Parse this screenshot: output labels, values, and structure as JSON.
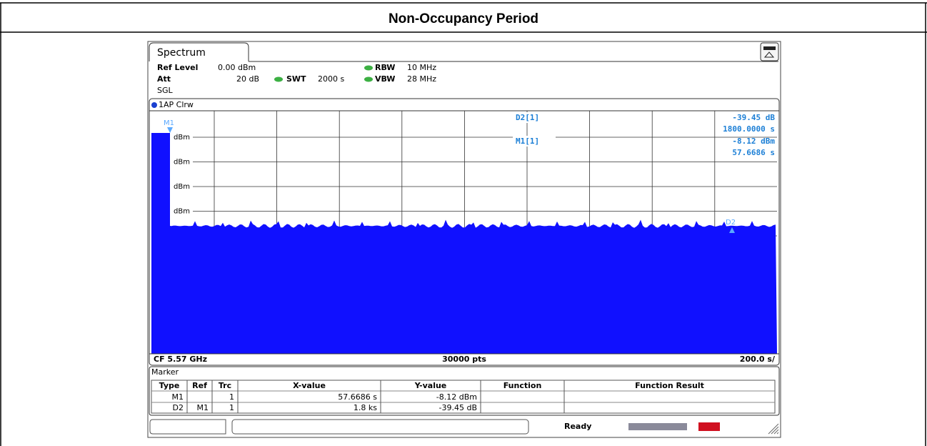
{
  "header": {
    "title": "Non-Occupancy Period"
  },
  "screen": {
    "tab": "Spectrum",
    "ref_level_label": "Ref Level",
    "ref_level": "0.00 dBm",
    "att_label": "Att",
    "att": "20 dB",
    "mode": "SGL",
    "swt_label": "SWT",
    "swt": "2000 s",
    "rbw_label": "RBW",
    "rbw": "10 MHz",
    "vbw_label": "VBW",
    "vbw": "28 MHz",
    "trace_label": "1AP Clrw",
    "y_labels": [
      "dBm",
      "dBm",
      "dBm",
      "dBm"
    ],
    "markers": [
      "M1",
      "D2"
    ],
    "readout": [
      {
        "name": "D2[1]",
        "value": "-39.45 dB",
        "x": "1800.0000 s"
      },
      {
        "name": "M1[1]",
        "value": "-8.12 dBm",
        "x": "57.6686 s"
      }
    ],
    "footer": {
      "center_freq": "CF 5.57 GHz",
      "points": "30000 pts",
      "span": "200.0 s/"
    },
    "marker_table": {
      "title": "Marker",
      "columns": [
        "Type",
        "Ref",
        "Trc",
        "X-value",
        "Y-value",
        "Function",
        "Function Result"
      ],
      "rows": [
        {
          "type": "M1",
          "trc": "1",
          "x_value": "57.6686 s",
          "y_value": "-8.12 dBm"
        },
        {
          "type": "D2",
          "ref": "M1",
          "trc": "1",
          "x_value": "1.8 ks",
          "y_value": "-39.45 dB"
        }
      ]
    },
    "status": "Ready"
  }
}
